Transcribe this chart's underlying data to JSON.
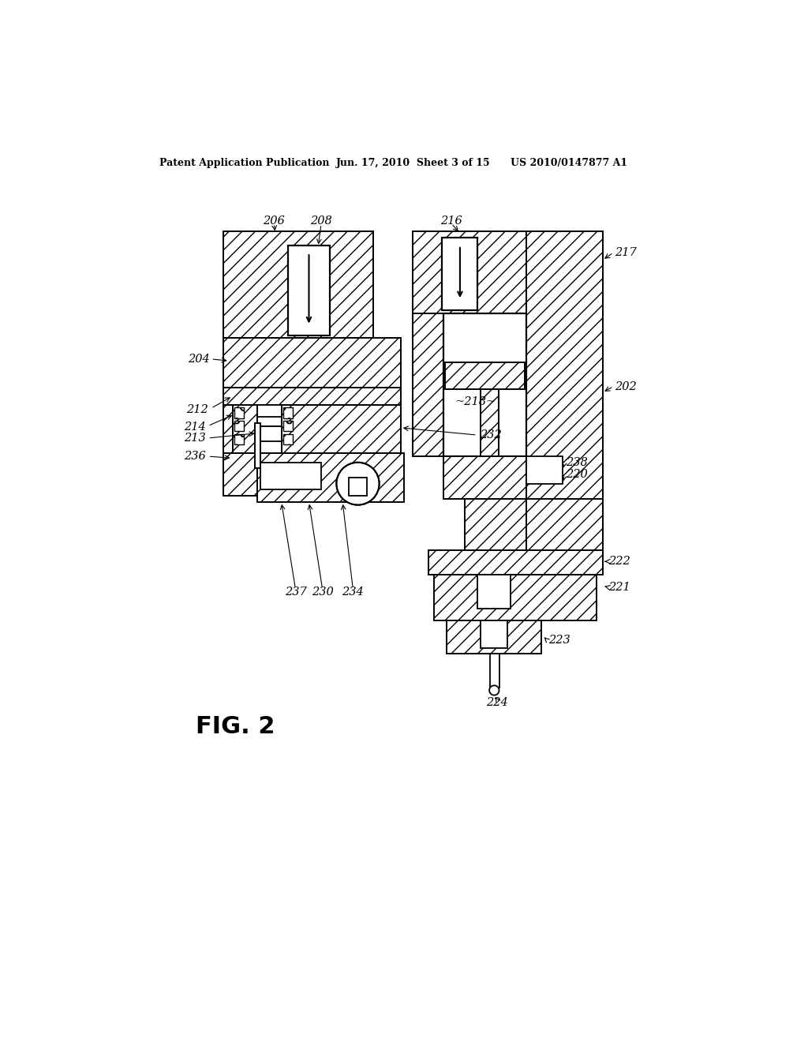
{
  "header_left": "Patent Application Publication",
  "header_mid": "Jun. 17, 2010  Sheet 3 of 15",
  "header_right": "US 2010/0147877 A1",
  "fig_label": "FIG. 2",
  "bg_color": "#ffffff"
}
